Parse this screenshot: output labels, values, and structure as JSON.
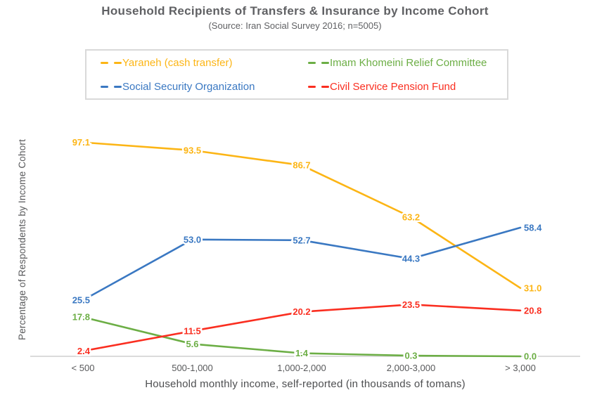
{
  "title": "Household Recipients of Transfers & Insurance by Income Cohort",
  "subtitle": "(Source: Iran Social Survey 2016; n=5005)",
  "colors": {
    "title_text": "#606164",
    "axis_text": "#58595b",
    "axis_line": "#dbdbdb",
    "yaraneh": "#fcb515",
    "social_security": "#3a78c2",
    "imam_khomeini": "#6cae45",
    "civil_service": "#fa2e20"
  },
  "chart_data": {
    "type": "line",
    "title": "Household Recipients of Transfers & Insurance by Income Cohort",
    "subtitle": "(Source: Iran Social Survey 2016; n=5005)",
    "categories": [
      "< 500",
      "500-1,000",
      "1,000-2,000",
      "2,000-3,000",
      "> 3,000"
    ],
    "series": [
      {
        "name": "Yaraneh (cash transfer)",
        "color": "#fcb515",
        "values": [
          97.1,
          93.5,
          86.7,
          63.2,
          31.0
        ]
      },
      {
        "name": "Social Security Organization",
        "color": "#3a78c2",
        "values": [
          25.5,
          53.0,
          52.7,
          44.3,
          58.4
        ]
      },
      {
        "name": "Imam Khomeini Relief Committee",
        "color": "#6cae45",
        "values": [
          17.8,
          5.6,
          1.4,
          0.3,
          0.0
        ]
      },
      {
        "name": "Civil Service Pension Fund",
        "color": "#fa2e20",
        "values": [
          2.4,
          11.5,
          20.2,
          23.5,
          20.8
        ]
      }
    ],
    "legend_order": [
      0,
      2,
      1,
      3
    ],
    "legend_position": "top",
    "value_labels": true,
    "grid": false,
    "xlabel": "Household monthly income, self-reported (in thousands of tomans)",
    "ylabel": "Percentage of Respondents by Income Cohort",
    "ylim": [
      0,
      100
    ]
  }
}
